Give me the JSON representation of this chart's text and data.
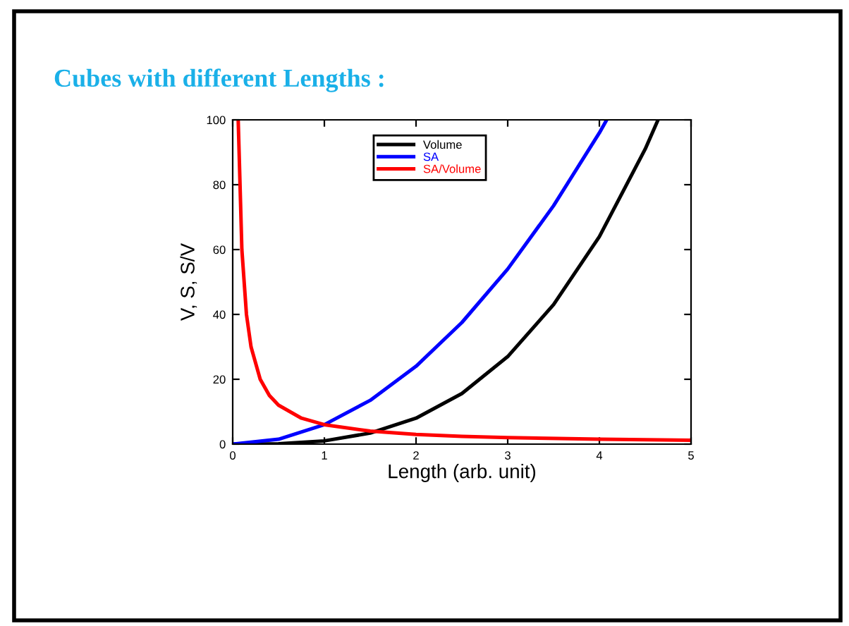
{
  "chart_data": {
    "type": "line",
    "title": "Cubes with different Lengths :",
    "xlabel": "Length (arb. unit)",
    "ylabel": "V, S, S/V",
    "xlim": [
      0,
      5
    ],
    "xticks": [
      0,
      1,
      2,
      3,
      4,
      5
    ],
    "ylim": [
      0,
      100
    ],
    "yticks": [
      0,
      20,
      40,
      60,
      80,
      100
    ],
    "grid": false,
    "legend": "top",
    "marker": "none",
    "line_style": "solid",
    "series": [
      {
        "name": "Volume",
        "color": "#000000",
        "x": [
          0,
          0.5,
          1,
          1.5,
          2,
          2.5,
          3,
          3.5,
          4,
          4.5,
          4.64
        ],
        "values": [
          0,
          0.1,
          1,
          3.4,
          8,
          15.6,
          27,
          43,
          64,
          91,
          100
        ]
      },
      {
        "name": "SA",
        "color": "#0000ff",
        "x": [
          0,
          0.5,
          1,
          1.5,
          2,
          2.5,
          3,
          3.5,
          4,
          4.08
        ],
        "values": [
          0,
          1.5,
          6,
          13.5,
          24,
          37.5,
          54,
          73.5,
          96,
          100
        ]
      },
      {
        "name": "SA/Volume",
        "color": "#ff0000",
        "x": [
          0.06,
          0.1,
          0.15,
          0.2,
          0.3,
          0.4,
          0.5,
          0.75,
          1,
          1.5,
          2,
          2.5,
          3,
          4,
          5
        ],
        "values": [
          100,
          60,
          40,
          30,
          20,
          15,
          12,
          8,
          6,
          4,
          3,
          2.4,
          2,
          1.5,
          1.2
        ]
      }
    ]
  }
}
